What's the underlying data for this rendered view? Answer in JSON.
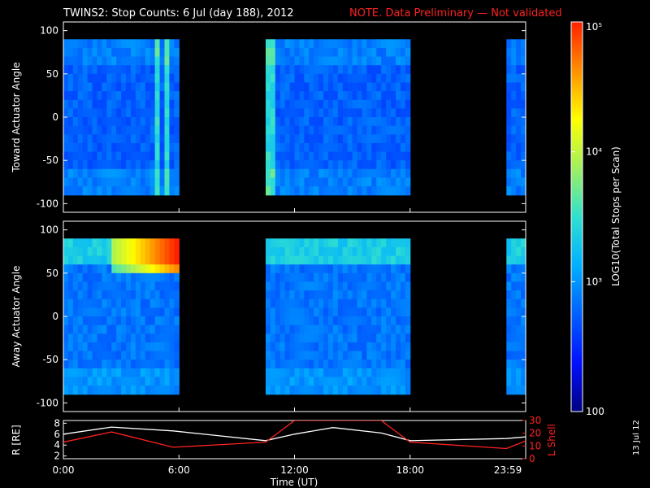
{
  "header": {
    "title": "TWINS2: Stop Counts:  6 Jul (day 188), 2012",
    "note": "NOTE. Data Preliminary — Not validated"
  },
  "stamp": "13 Jul 12",
  "colors": {
    "background": "#000000",
    "axis": "#ffffff",
    "note": "#ff2020",
    "lshell": "#ff2020",
    "radius": "#ffffff"
  },
  "colorbar": {
    "label": "LOG10(Total Stops per Scan)",
    "tick_labels": [
      "10⁵",
      "10⁴",
      "10³",
      "100"
    ],
    "tick_values": [
      100000,
      10000,
      1000,
      100
    ],
    "range": [
      100,
      100000
    ],
    "scale": "log",
    "colormap": [
      "#000080",
      "#0010ff",
      "#0060ff",
      "#00b0ff",
      "#30e0d0",
      "#a0f060",
      "#ffff00",
      "#ff9000",
      "#ff2000"
    ]
  },
  "chart_data": [
    {
      "type": "heatmap",
      "panel": "toward",
      "ylabel": "Toward Actuator Angle",
      "ylim": [
        -110,
        110
      ],
      "y_ticks": [
        100,
        50,
        0,
        -50,
        -100
      ],
      "data_y_range": [
        -90,
        90
      ],
      "xlim_hours": [
        0,
        24
      ],
      "data_intervals_hours": [
        [
          0,
          5.9
        ],
        [
          10.4,
          18.0
        ],
        [
          22.9,
          24
        ]
      ],
      "x_tick_labels": [
        "0:00",
        "6:00",
        "12:00",
        "18:00",
        "23:59"
      ],
      "typical_log10_counts": 2.9,
      "bright_bands_hours": [
        [
          4.7,
          5.0
        ],
        [
          5.3,
          5.45
        ],
        [
          10.5,
          10.9
        ],
        [
          22.9,
          23.1
        ]
      ],
      "grid": false
    },
    {
      "type": "heatmap",
      "panel": "away",
      "ylabel": "Away Actuator Angle",
      "ylim": [
        -110,
        110
      ],
      "y_ticks": [
        100,
        50,
        0,
        -50,
        -100
      ],
      "data_y_range": [
        -90,
        90
      ],
      "xlim_hours": [
        0,
        24
      ],
      "data_intervals_hours": [
        [
          0,
          5.9
        ],
        [
          10.4,
          18.0
        ],
        [
          22.9,
          24
        ]
      ],
      "x_tick_labels": [
        "0:00",
        "6:00",
        "12:00",
        "18:00",
        "23:59"
      ],
      "typical_log10_counts": 3.0,
      "high_count_region": {
        "hours": [
          2.5,
          5.9
        ],
        "angle": [
          60,
          80
        ],
        "log10_counts": 4.7
      },
      "grid": false
    },
    {
      "type": "line",
      "panel": "orbit",
      "xlabel": "Time (UT)",
      "ylabel_left": "R [RE]",
      "ylabel_right": "L Shell",
      "ylim_left": [
        1.5,
        8.5
      ],
      "y_ticks_left": [
        2,
        4,
        6,
        8
      ],
      "ylim_right": [
        0,
        30
      ],
      "y_ticks_right": [
        0,
        10,
        20,
        30
      ],
      "x": [
        0,
        2.5,
        5.7,
        10.5,
        12,
        14,
        16.5,
        18,
        23,
        24
      ],
      "series": [
        {
          "name": "R [RE]",
          "values": [
            6.0,
            7.3,
            6.6,
            4.8,
            6.0,
            7.2,
            6.2,
            4.8,
            5.2,
            5.5
          ]
        },
        {
          "name": "L Shell",
          "values": [
            13,
            21,
            9,
            13,
            30,
            30,
            30,
            13,
            8,
            14
          ]
        }
      ]
    }
  ]
}
